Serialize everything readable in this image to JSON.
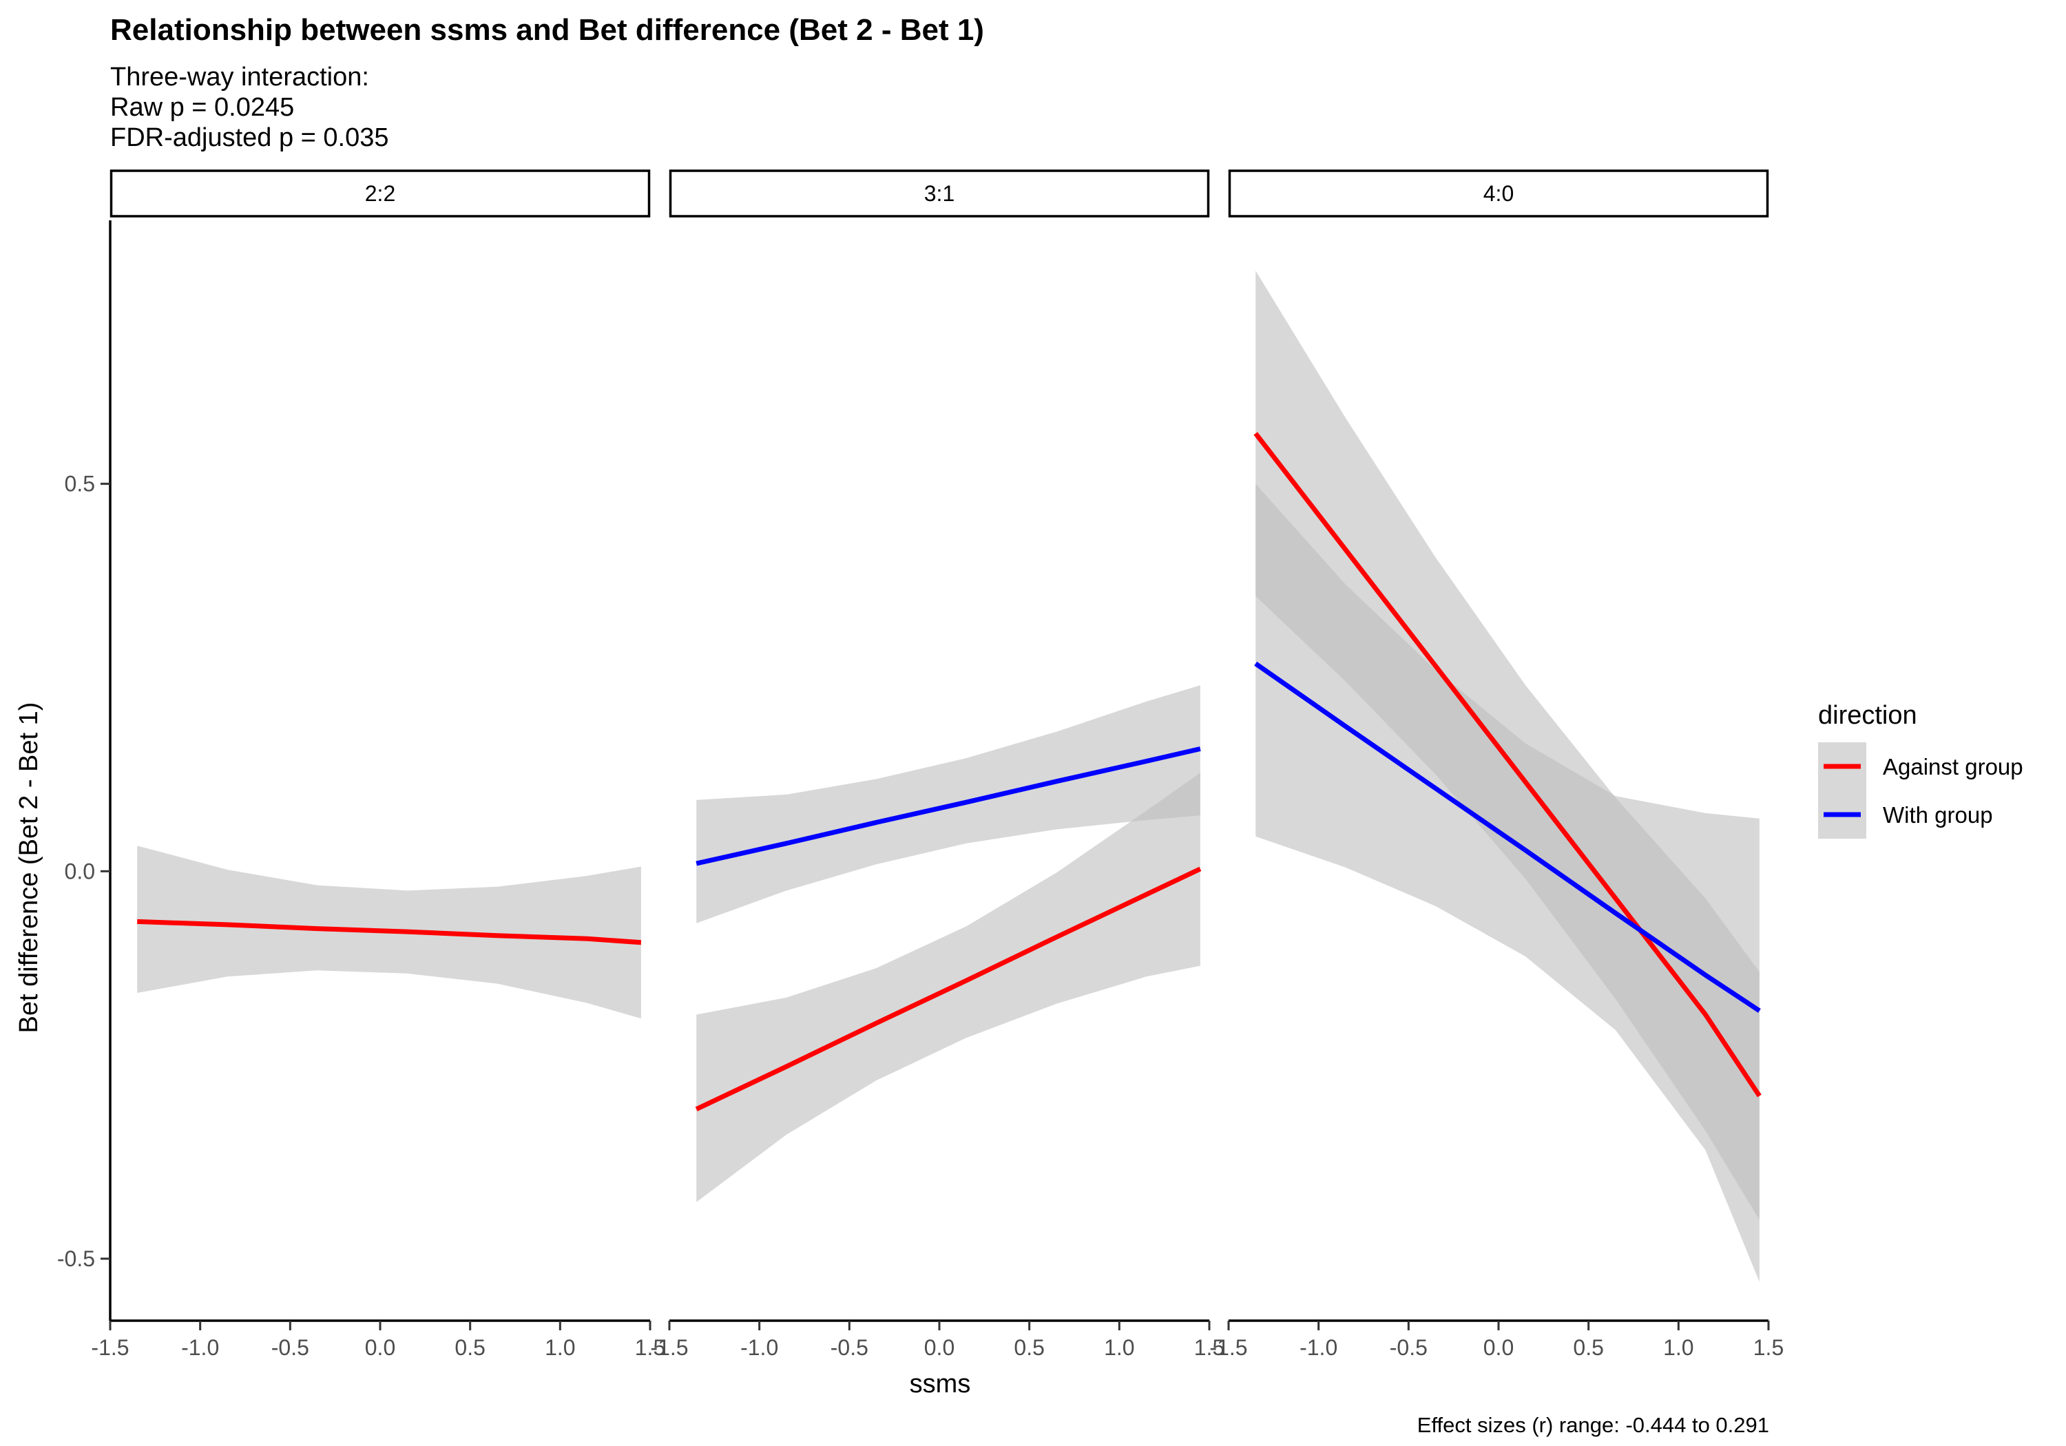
{
  "chart_data": {
    "type": "line",
    "title": "Relationship between ssms and Bet difference (Bet 2 - Bet 1)",
    "subtitle": [
      "Three-way interaction:",
      "Raw p = 0.0245",
      "FDR-adjusted p = 0.035"
    ],
    "xlabel": "ssms",
    "ylabel": "Bet difference (Bet 2 - Bet 1)",
    "caption": "Effect sizes (r) range: -0.444 to 0.291",
    "xlim": [
      -1.5,
      1.5
    ],
    "ylim": [
      -0.58,
      0.84
    ],
    "x_ticks": [
      -1.5,
      -1.0,
      -0.5,
      0.0,
      0.5,
      1.0,
      1.5
    ],
    "x_tick_labels": [
      "-1.5",
      "-1.0",
      "-0.5",
      "0.0",
      "0.5",
      "1.0",
      "1.5"
    ],
    "y_ticks": [
      -0.5,
      0.0,
      0.5
    ],
    "y_tick_labels": [
      "-0.5",
      "0.0",
      "0.5"
    ],
    "grid": false,
    "legend": {
      "title": "direction",
      "placement": "right",
      "entries": [
        {
          "label": "Against group",
          "color": "#ff0000"
        },
        {
          "label": "With group",
          "color": "#0000ff"
        }
      ]
    },
    "ribbon_color": "#bebebe",
    "ribbon_opacity": 0.6,
    "panels": [
      {
        "label": "2:2",
        "series": [
          {
            "name": "Against group",
            "color": "#ff0000",
            "x": [
              -1.35,
              -0.85,
              -0.35,
              0.15,
              0.65,
              1.15,
              1.45
            ],
            "y": [
              -0.065,
              -0.069,
              -0.074,
              -0.078,
              -0.083,
              -0.087,
              -0.092
            ],
            "lower": [
              -0.157,
              -0.136,
              -0.128,
              -0.132,
              -0.145,
              -0.17,
              -0.19
            ],
            "upper": [
              0.033,
              0.002,
              -0.018,
              -0.025,
              -0.02,
              -0.006,
              0.006
            ]
          }
        ]
      },
      {
        "label": "3:1",
        "series": [
          {
            "name": "With group",
            "color": "#0000ff",
            "x": [
              -1.35,
              -0.85,
              -0.35,
              0.15,
              0.65,
              1.15,
              1.45
            ],
            "y": [
              0.01,
              0.036,
              0.063,
              0.089,
              0.116,
              0.142,
              0.158
            ],
            "lower": [
              -0.067,
              -0.025,
              0.009,
              0.036,
              0.054,
              0.066,
              0.072
            ],
            "upper": [
              0.092,
              0.099,
              0.119,
              0.146,
              0.18,
              0.219,
              0.24
            ]
          },
          {
            "name": "Against group",
            "color": "#ff0000",
            "x": [
              -1.35,
              -0.85,
              -0.35,
              0.15,
              0.65,
              1.15,
              1.45
            ],
            "y": [
              -0.307,
              -0.252,
              -0.196,
              -0.141,
              -0.085,
              -0.03,
              0.003
            ],
            "lower": [
              -0.427,
              -0.34,
              -0.27,
              -0.215,
              -0.171,
              -0.136,
              -0.122
            ],
            "upper": [
              -0.185,
              -0.163,
              -0.125,
              -0.071,
              -0.002,
              0.078,
              0.127
            ]
          }
        ]
      },
      {
        "label": "4:0",
        "series": [
          {
            "name": "Against group",
            "color": "#ff0000",
            "x": [
              -1.35,
              -0.85,
              -0.35,
              0.15,
              0.65,
              1.15,
              1.45
            ],
            "y": [
              0.565,
              0.415,
              0.265,
              0.115,
              -0.035,
              -0.185,
              -0.29
            ],
            "lower": [
              0.355,
              0.245,
              0.125,
              -0.01,
              -0.165,
              -0.335,
              -0.45
            ],
            "upper": [
              0.775,
              0.585,
              0.405,
              0.24,
              0.095,
              -0.035,
              -0.13
            ]
          },
          {
            "name": "With group",
            "color": "#0000ff",
            "x": [
              -1.35,
              -0.85,
              -0.35,
              0.15,
              0.65,
              1.15,
              1.45
            ],
            "y": [
              0.268,
              0.187,
              0.107,
              0.027,
              -0.054,
              -0.134,
              -0.18
            ],
            "lower": [
              0.045,
              0.005,
              -0.045,
              -0.11,
              -0.205,
              -0.36,
              -0.53
            ],
            "upper": [
              0.5,
              0.37,
              0.26,
              0.165,
              0.097,
              0.075,
              0.068
            ]
          }
        ]
      }
    ]
  }
}
